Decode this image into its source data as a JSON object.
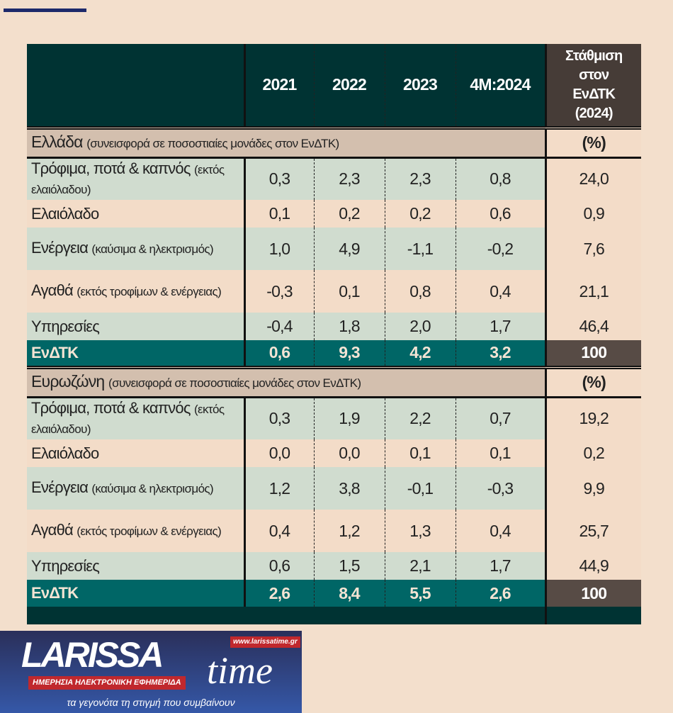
{
  "header": {
    "years": [
      "2021",
      "2022",
      "2023",
      "4M:2024"
    ],
    "weight": [
      "Στάθμιση",
      "στον",
      "ΕνΔΤΚ",
      "(2024)"
    ]
  },
  "sections": [
    {
      "title": "Ελλάδα",
      "subtitle": "(συνεισφορά σε ποσοστιαίες μονάδες στον ΕνΔΤΚ)",
      "unit": "(%)",
      "rows": [
        {
          "label": "Τρόφιμα, ποτά & καπνός",
          "sub": "(εκτός ελαιόλαδου)",
          "values": [
            "0,3",
            "2,3",
            "2,3",
            "0,8"
          ],
          "weight": "24,0"
        },
        {
          "label": "Ελαιόλαδο",
          "sub": "",
          "values": [
            "0,1",
            "0,2",
            "0,2",
            "0,6"
          ],
          "weight": "0,9"
        },
        {
          "label": "Ενέργεια",
          "sub": "(καύσιμα & ηλεκτρισμός)",
          "values": [
            "1,0",
            "4,9",
            "-1,1",
            "-0,2"
          ],
          "weight": "7,6"
        },
        {
          "label": "Αγαθά",
          "sub": "(εκτός τροφίμων & ενέργειας)",
          "values": [
            "-0,3",
            "0,1",
            "0,8",
            "0,4"
          ],
          "weight": "21,1"
        },
        {
          "label": "Υπηρεσίες",
          "sub": "",
          "values": [
            "-0,4",
            "1,8",
            "2,0",
            "1,7"
          ],
          "weight": "46,4"
        }
      ],
      "total": {
        "label": "ΕνΔΤΚ",
        "values": [
          "0,6",
          "9,3",
          "4,2",
          "3,2"
        ],
        "weight": "100"
      }
    },
    {
      "title": "Ευρωζώνη",
      "subtitle": "(συνεισφορά σε ποσοστιαίες μονάδες στον ΕνΔΤΚ)",
      "unit": "(%)",
      "rows": [
        {
          "label": "Τρόφιμα, ποτά & καπνός",
          "sub": "(εκτός ελαιόλαδου)",
          "values": [
            "0,3",
            "1,9",
            "2,2",
            "0,7"
          ],
          "weight": "19,2"
        },
        {
          "label": "Ελαιόλαδο",
          "sub": "",
          "values": [
            "0,0",
            "0,0",
            "0,1",
            "0,1"
          ],
          "weight": "0,2"
        },
        {
          "label": "Ενέργεια",
          "sub": "(καύσιμα & ηλεκτρισμός)",
          "values": [
            "1,2",
            "3,8",
            "-0,1",
            "-0,3"
          ],
          "weight": "9,9"
        },
        {
          "label": "Αγαθά",
          "sub": "(εκτός τροφίμων & ενέργειας)",
          "values": [
            "0,4",
            "1,2",
            "1,3",
            "0,4"
          ],
          "weight": "25,7"
        },
        {
          "label": "Υπηρεσίες",
          "sub": "",
          "values": [
            "0,6",
            "1,5",
            "2,1",
            "1,7"
          ],
          "weight": "44,9"
        }
      ],
      "total": {
        "label": "ΕνΔΤΚ",
        "values": [
          "2,6",
          "8,4",
          "5,5",
          "2,6"
        ],
        "weight": "100"
      }
    }
  ],
  "logo": {
    "name": "LARISSA",
    "name2": "time",
    "url": "www.larissatime.gr",
    "tagline": "ΗΜΕΡΗΣΙΑ ΗΛΕΚΤΡΟΝΙΚΗ ΕΦΗΜΕΡΙΔΑ",
    "slogan": "τα γεγονότα τη στιγμή που συμβαίνουν"
  }
}
